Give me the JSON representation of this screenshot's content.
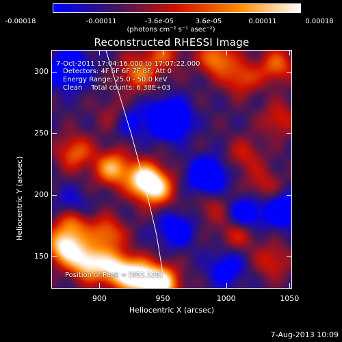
{
  "colorbar": {
    "tick_labels": [
      "-0.00018",
      "-0.00011",
      "-3.6e-05",
      "3.6e-05",
      "0.00011",
      "0.00018"
    ],
    "units": "(photons cm⁻² s⁻¹ asec⁻²)",
    "colormap": [
      "#0000ff",
      "#3b1760",
      "#d01000",
      "#ff8a00",
      "#ffffff"
    ]
  },
  "overlay": {
    "time_range": "7-Oct-2011 17:04:16.000 to 17:07:22.000",
    "detectors": "Detectors: 4F 5F 6F 7F 8F, Att 0",
    "energy_range": "Energy Range: 25.0 - 50.0 keV",
    "method_counts": "Clean    Total counts: 6.38E+03",
    "peak": "Position of Peak = [952,128]"
  },
  "footer": {
    "date": "7-Aug-2013 10:09"
  },
  "chart_data": {
    "type": "heatmap",
    "title": "Reconstructed RHESSI Image",
    "xlabel": "Heliocentric X (arcsec)",
    "ylabel": "Heliocentric Y (arcsec)",
    "xlim": [
      862,
      1052
    ],
    "ylim": [
      124,
      318
    ],
    "x_ticks": [
      900,
      950,
      1000,
      1050
    ],
    "y_ticks": [
      150,
      200,
      250,
      300
    ],
    "clim": [
      -0.00018,
      0.00018
    ],
    "peak": [
      952,
      128
    ],
    "limb_curve": {
      "x": [
        905,
        915,
        925,
        935,
        945,
        952
      ],
      "y": [
        318,
        284,
        250,
        212,
        168,
        124
      ]
    },
    "blobs": [
      {
        "x": 948,
        "y": 128,
        "v": 1.0
      },
      {
        "x": 930,
        "y": 133,
        "v": 0.9
      },
      {
        "x": 912,
        "y": 140,
        "v": 0.8
      },
      {
        "x": 890,
        "y": 145,
        "v": 0.85
      },
      {
        "x": 872,
        "y": 158,
        "v": 0.9
      },
      {
        "x": 878,
        "y": 180,
        "v": 0.75
      },
      {
        "x": 905,
        "y": 168,
        "v": 0.55
      },
      {
        "x": 935,
        "y": 213,
        "v": 0.85
      },
      {
        "x": 910,
        "y": 222,
        "v": 0.7
      },
      {
        "x": 945,
        "y": 205,
        "v": 0.65
      },
      {
        "x": 880,
        "y": 235,
        "v": 0.5
      },
      {
        "x": 915,
        "y": 265,
        "v": 0.45
      },
      {
        "x": 930,
        "y": 300,
        "v": 0.55
      },
      {
        "x": 950,
        "y": 315,
        "v": 0.4
      },
      {
        "x": 992,
        "y": 312,
        "v": 0.6
      },
      {
        "x": 1012,
        "y": 296,
        "v": 0.45
      },
      {
        "x": 1040,
        "y": 306,
        "v": 0.5
      },
      {
        "x": 1042,
        "y": 262,
        "v": 0.35
      },
      {
        "x": 1015,
        "y": 233,
        "v": 0.3
      },
      {
        "x": 1010,
        "y": 170,
        "v": 0.4
      },
      {
        "x": 1037,
        "y": 146,
        "v": 0.35
      },
      {
        "x": 1030,
        "y": 208,
        "v": 0.3
      },
      {
        "x": 990,
        "y": 190,
        "v": 0.25
      },
      {
        "x": 955,
        "y": 262,
        "v": -1.0
      },
      {
        "x": 922,
        "y": 262,
        "v": -0.55
      },
      {
        "x": 985,
        "y": 216,
        "v": -0.7
      },
      {
        "x": 876,
        "y": 303,
        "v": -0.75
      },
      {
        "x": 878,
        "y": 188,
        "v": -0.55
      },
      {
        "x": 1015,
        "y": 184,
        "v": -0.55
      },
      {
        "x": 1045,
        "y": 188,
        "v": -0.55
      },
      {
        "x": 960,
        "y": 172,
        "v": -0.45
      },
      {
        "x": 1000,
        "y": 140,
        "v": -0.4
      }
    ]
  }
}
